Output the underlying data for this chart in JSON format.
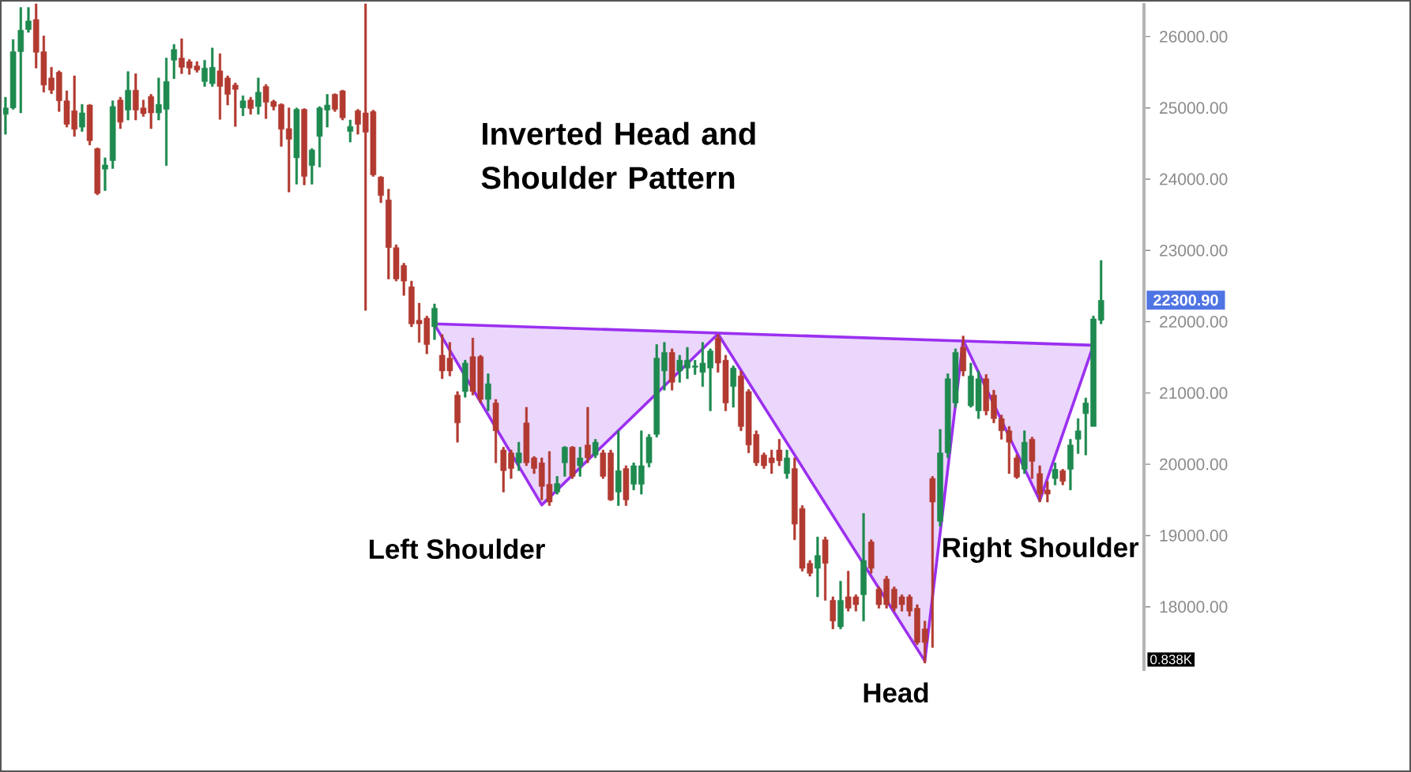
{
  "chart_data": {
    "type": "candlestick",
    "title": "Inverted Head and Shoulder Pattern",
    "categories": [
      null,
      null,
      null,
      null,
      null,
      null,
      null,
      null,
      null,
      null,
      null,
      null,
      null,
      null,
      null,
      null,
      null,
      null,
      null,
      null,
      null,
      null,
      null,
      null,
      null,
      null,
      null,
      null,
      null,
      null,
      null,
      null,
      null,
      null,
      null,
      null,
      null,
      null,
      null,
      null,
      null,
      null,
      null,
      null,
      null,
      null,
      null,
      null,
      null,
      null,
      null,
      null,
      null,
      null,
      null,
      null,
      null,
      null,
      null,
      null,
      null,
      null,
      null,
      null,
      null,
      null,
      null,
      null,
      null,
      null,
      null,
      null,
      null,
      null,
      null,
      null,
      null,
      null,
      null,
      null,
      null,
      null,
      null,
      null,
      null,
      null,
      null,
      null,
      null,
      null,
      null,
      null,
      null,
      null,
      null,
      null,
      null,
      null,
      null,
      null,
      null,
      null,
      null,
      null,
      null,
      null,
      null,
      null,
      null,
      null,
      null,
      null,
      null,
      null,
      null,
      null,
      null,
      null,
      null,
      null,
      null,
      null,
      null,
      null,
      null,
      null,
      null,
      null,
      null,
      null,
      null,
      null,
      null,
      null,
      null,
      null,
      null,
      null,
      null,
      null,
      null,
      null,
      null,
      null
    ],
    "ohlc": [
      [
        24910,
        25150,
        24630,
        25000
      ],
      [
        25000,
        25960,
        24980,
        25790
      ],
      [
        25790,
        26410,
        24930,
        26090
      ],
      [
        26100,
        26410,
        26060,
        26220
      ],
      [
        26240,
        26460,
        25560,
        25780
      ],
      [
        25790,
        26010,
        25220,
        25320
      ],
      [
        25420,
        25570,
        25200,
        25250
      ],
      [
        25500,
        25520,
        24950,
        25100
      ],
      [
        25100,
        25240,
        24730,
        24770
      ],
      [
        24960,
        25450,
        24600,
        24700
      ],
      [
        24730,
        25050,
        24670,
        24930
      ],
      [
        25040,
        25050,
        24480,
        24540
      ],
      [
        24430,
        24440,
        23780,
        23800
      ],
      [
        24140,
        24300,
        23840,
        24200
      ],
      [
        24260,
        25100,
        24150,
        25020
      ],
      [
        25110,
        25150,
        24710,
        24800
      ],
      [
        24970,
        25510,
        24830,
        25250
      ],
      [
        25250,
        25480,
        24830,
        24970
      ],
      [
        25000,
        25110,
        24880,
        24920
      ],
      [
        25160,
        25190,
        24710,
        24930
      ],
      [
        24930,
        25420,
        24830,
        25050
      ],
      [
        24980,
        25700,
        24190,
        25370
      ],
      [
        25670,
        25890,
        25410,
        25820
      ],
      [
        25700,
        25970,
        25480,
        25570
      ],
      [
        25650,
        25680,
        25470,
        25560
      ],
      [
        25590,
        25650,
        25500,
        25530
      ],
      [
        25370,
        25670,
        25300,
        25560
      ],
      [
        25340,
        25840,
        25300,
        25570
      ],
      [
        25520,
        25760,
        24840,
        25300
      ],
      [
        25420,
        25450,
        25040,
        25190
      ],
      [
        25320,
        25350,
        24740,
        25260
      ],
      [
        25000,
        25170,
        24890,
        25100
      ],
      [
        25110,
        25150,
        24910,
        24990
      ],
      [
        25020,
        25420,
        24910,
        25220
      ],
      [
        25300,
        25330,
        24850,
        25080
      ],
      [
        25090,
        25110,
        24970,
        25020
      ],
      [
        25050,
        25060,
        24460,
        24700
      ],
      [
        24710,
        25000,
        23820,
        24560
      ],
      [
        24300,
        25000,
        23930,
        24980
      ],
      [
        24980,
        24990,
        23920,
        24040
      ],
      [
        24190,
        24430,
        23930,
        24410
      ],
      [
        24600,
        25020,
        24170,
        25000
      ],
      [
        24970,
        25190,
        24730,
        25040
      ],
      [
        25190,
        25200,
        24950,
        24980
      ],
      [
        25240,
        25250,
        24830,
        24860
      ],
      [
        24670,
        24830,
        24520,
        24740
      ],
      [
        24960,
        24980,
        24630,
        24770
      ],
      [
        24930,
        26460,
        22160,
        24660
      ],
      [
        24950,
        24970,
        24040,
        24060
      ],
      [
        24030,
        24040,
        23670,
        23770
      ],
      [
        23710,
        23860,
        22600,
        23040
      ],
      [
        23040,
        23080,
        22570,
        22600
      ],
      [
        22790,
        22820,
        22370,
        22570
      ],
      [
        22490,
        22570,
        21930,
        21970
      ],
      [
        22020,
        22260,
        21710,
        21970
      ],
      [
        22050,
        22080,
        21550,
        21680
      ],
      [
        21930,
        22250,
        21750,
        22190
      ],
      [
        21530,
        21820,
        21200,
        21310
      ],
      [
        21490,
        21710,
        21240,
        21310
      ],
      [
        20970,
        21020,
        20310,
        20580
      ],
      [
        21020,
        21460,
        20940,
        21420
      ],
      [
        21510,
        21770,
        20970,
        21020
      ],
      [
        21510,
        21530,
        20860,
        20910
      ],
      [
        20910,
        21270,
        20750,
        21130
      ],
      [
        20860,
        20910,
        20020,
        20470
      ],
      [
        20200,
        20240,
        19610,
        19910
      ],
      [
        20160,
        20200,
        19800,
        19940
      ],
      [
        20020,
        20310,
        19910,
        20160
      ],
      [
        20580,
        20800,
        19980,
        20020
      ],
      [
        20090,
        20110,
        19870,
        19940
      ],
      [
        20020,
        20090,
        19500,
        19690
      ],
      [
        19720,
        20180,
        19420,
        19470
      ],
      [
        19610,
        19830,
        19580,
        19730
      ],
      [
        20020,
        20250,
        19830,
        20240
      ],
      [
        20240,
        20250,
        19800,
        19830
      ],
      [
        19980,
        20240,
        19830,
        20090
      ],
      [
        20270,
        20800,
        20020,
        20090
      ],
      [
        20130,
        20350,
        20090,
        20310
      ],
      [
        20160,
        20200,
        19800,
        19830
      ],
      [
        20160,
        20200,
        19490,
        19500
      ],
      [
        19610,
        20470,
        19420,
        19910
      ],
      [
        19940,
        19980,
        19420,
        19500
      ],
      [
        19720,
        20020,
        19640,
        19980
      ],
      [
        19720,
        20470,
        19580,
        19980
      ],
      [
        20020,
        20420,
        19960,
        20380
      ],
      [
        20420,
        21680,
        20380,
        21490
      ],
      [
        21310,
        21710,
        21040,
        21570
      ],
      [
        21570,
        21620,
        21040,
        21150
      ],
      [
        21310,
        21530,
        21150,
        21460
      ],
      [
        21350,
        21640,
        21200,
        21460
      ],
      [
        21360,
        21460,
        21260,
        21380
      ],
      [
        21290,
        21710,
        21090,
        21420
      ],
      [
        21350,
        21620,
        20750,
        21590
      ],
      [
        21770,
        21820,
        21290,
        21420
      ],
      [
        21460,
        21530,
        20750,
        20860
      ],
      [
        21090,
        21380,
        20800,
        21350
      ],
      [
        21240,
        21310,
        20470,
        20530
      ],
      [
        21020,
        21050,
        20160,
        20270
      ],
      [
        20420,
        20470,
        19980,
        20020
      ],
      [
        20130,
        20160,
        19940,
        19980
      ],
      [
        20090,
        20200,
        19870,
        20020
      ],
      [
        20200,
        20350,
        19980,
        20050
      ],
      [
        19870,
        20200,
        19800,
        20090
      ],
      [
        19940,
        20090,
        18940,
        19160
      ],
      [
        19380,
        19420,
        18500,
        18540
      ],
      [
        18610,
        18650,
        18430,
        18470
      ],
      [
        18540,
        18980,
        18140,
        18720
      ],
      [
        18940,
        18980,
        18090,
        18610
      ],
      [
        18090,
        18140,
        17690,
        17800
      ],
      [
        17720,
        18360,
        17690,
        18090
      ],
      [
        18140,
        18500,
        17940,
        17980
      ],
      [
        18140,
        18170,
        17940,
        18030
      ],
      [
        18170,
        19310,
        17800,
        18650
      ],
      [
        18910,
        18940,
        18470,
        18540
      ],
      [
        18250,
        18280,
        17980,
        18030
      ],
      [
        18390,
        18430,
        17980,
        18030
      ],
      [
        18250,
        18280,
        17940,
        17980
      ],
      [
        18140,
        18170,
        17940,
        18030
      ],
      [
        18140,
        18170,
        17870,
        17940
      ],
      [
        17980,
        18030,
        17470,
        17500
      ],
      [
        17690,
        17800,
        17210,
        17500
      ],
      [
        19800,
        19830,
        17430,
        19470
      ],
      [
        19200,
        20490,
        19130,
        20160
      ],
      [
        20160,
        21270,
        20090,
        21200
      ],
      [
        20860,
        21620,
        20800,
        21570
      ],
      [
        21640,
        21800,
        21240,
        21310
      ],
      [
        20820,
        21420,
        20800,
        21240
      ],
      [
        20750,
        21310,
        20640,
        21200
      ],
      [
        21200,
        21260,
        20690,
        20750
      ],
      [
        20970,
        21040,
        20580,
        20640
      ],
      [
        20640,
        20690,
        20350,
        20470
      ],
      [
        20470,
        20530,
        19870,
        20310
      ],
      [
        20090,
        20130,
        19800,
        19820
      ],
      [
        19930,
        20470,
        19870,
        20310
      ],
      [
        20350,
        20380,
        19800,
        20040
      ],
      [
        19870,
        19980,
        19470,
        19580
      ],
      [
        19640,
        19760,
        19470,
        19580
      ],
      [
        19800,
        20020,
        19710,
        19930
      ],
      [
        19910,
        19930,
        19710,
        19760
      ],
      [
        19930,
        20350,
        19640,
        20270
      ],
      [
        20350,
        20640,
        20150,
        20470
      ],
      [
        20710,
        20930,
        20130,
        20860
      ],
      [
        20530,
        22080,
        20530,
        22040
      ],
      [
        22020,
        22860,
        21970,
        22300.9
      ]
    ],
    "colors": [
      "#1e8a4f",
      "#1e8a4f",
      "#1e8a4f",
      "#1e8a4f",
      "#b23a30",
      "#b23a30",
      "#b23a30",
      "#b23a30",
      "#b23a30",
      "#b23a30",
      "#1e8a4f",
      "#b23a30",
      "#b23a30",
      "#1e8a4f",
      "#1e8a4f",
      "#b23a30",
      "#1e8a4f",
      "#b23a30",
      "#b23a30",
      "#b23a30",
      "#1e8a4f",
      "#1e8a4f",
      "#1e8a4f",
      "#b23a30",
      "#b23a30",
      "#b23a30",
      "#1e8a4f",
      "#1e8a4f",
      "#b23a30",
      "#b23a30",
      "#b23a30",
      "#1e8a4f",
      "#b23a30",
      "#1e8a4f",
      "#b23a30",
      "#b23a30",
      "#b23a30",
      "#b23a30",
      "#1e8a4f",
      "#b23a30",
      "#1e8a4f",
      "#1e8a4f",
      "#1e8a4f",
      "#b23a30",
      "#b23a30",
      "#1e8a4f",
      "#b23a30",
      "#b23a30",
      "#b23a30",
      "#b23a30",
      "#b23a30",
      "#b23a30",
      "#b23a30",
      "#b23a30",
      "#b23a30",
      "#b23a30",
      "#1e8a4f",
      "#b23a30",
      "#b23a30",
      "#b23a30",
      "#1e8a4f",
      "#b23a30",
      "#b23a30",
      "#1e8a4f",
      "#b23a30",
      "#b23a30",
      "#b23a30",
      "#1e8a4f",
      "#b23a30",
      "#b23a30",
      "#b23a30",
      "#b23a30",
      "#1e8a4f",
      "#1e8a4f",
      "#b23a30",
      "#1e8a4f",
      "#b23a30",
      "#1e8a4f",
      "#b23a30",
      "#b23a30",
      "#1e8a4f",
      "#b23a30",
      "#1e8a4f",
      "#1e8a4f",
      "#1e8a4f",
      "#1e8a4f",
      "#1e8a4f",
      "#b23a30",
      "#1e8a4f",
      "#1e8a4f",
      "#1e8a4f",
      "#1e8a4f",
      "#1e8a4f",
      "#b23a30",
      "#b23a30",
      "#1e8a4f",
      "#b23a30",
      "#b23a30",
      "#b23a30",
      "#b23a30",
      "#b23a30",
      "#b23a30",
      "#1e8a4f",
      "#b23a30",
      "#b23a30",
      "#b23a30",
      "#1e8a4f",
      "#b23a30",
      "#b23a30",
      "#1e8a4f",
      "#b23a30",
      "#b23a30",
      "#1e8a4f",
      "#b23a30",
      "#b23a30",
      "#b23a30",
      "#b23a30",
      "#b23a30",
      "#b23a30",
      "#b23a30",
      "#b23a30",
      "#b23a30",
      "#1e8a4f",
      "#1e8a4f",
      "#1e8a4f",
      "#b23a30",
      "#1e8a4f",
      "#1e8a4f",
      "#b23a30",
      "#b23a30",
      "#b23a30",
      "#b23a30",
      "#b23a30",
      "#1e8a4f",
      "#b23a30",
      "#b23a30",
      "#b23a30",
      "#1e8a4f",
      "#b23a30",
      "#1e8a4f",
      "#1e8a4f",
      "#1e8a4f",
      "#1e8a4f",
      "#1e8a4f"
    ],
    "series": [
      {
        "type": "line",
        "color": "#9b30f0",
        "values": [
          null,
          null,
          null,
          null,
          null,
          null,
          null,
          null,
          null,
          null,
          null,
          null,
          null,
          null,
          null,
          null,
          null,
          null,
          null,
          null,
          null,
          null,
          null,
          null,
          null,
          null,
          null,
          null,
          null,
          null,
          null,
          null,
          null,
          null,
          null,
          null,
          null,
          null,
          null,
          null,
          null,
          null,
          null,
          null,
          null,
          null,
          null,
          null,
          null,
          null,
          null,
          null,
          null,
          null,
          null,
          null,
          21970,
          null,
          null,
          null,
          null,
          null,
          null,
          null,
          null,
          null,
          null,
          null,
          null,
          null,
          null,
          null,
          null,
          null,
          null,
          null,
          null,
          null,
          null,
          null,
          null,
          null,
          null,
          null,
          null,
          null,
          null,
          null,
          null,
          null,
          null,
          null,
          null,
          null,
          null,
          null,
          null,
          null,
          null,
          null,
          null,
          null,
          null,
          null,
          null,
          null,
          null,
          null,
          null,
          null,
          null,
          null,
          null,
          null,
          null,
          null,
          null,
          null,
          null,
          null,
          null,
          null,
          null,
          null,
          null,
          null,
          null,
          null,
          null,
          null,
          null,
          null,
          null,
          null,
          null,
          null,
          null,
          null,
          null,
          null,
          null,
          null,
          21670,
          null
        ]
      },
      {
        "type": "line",
        "color": "#9b30f0",
        "values": [
          null,
          null,
          null,
          null,
          null,
          null,
          null,
          null,
          null,
          null,
          null,
          null,
          null,
          null,
          null,
          null,
          null,
          null,
          null,
          null,
          null,
          null,
          null,
          null,
          null,
          null,
          null,
          null,
          null,
          null,
          null,
          null,
          null,
          null,
          null,
          null,
          null,
          null,
          null,
          null,
          null,
          null,
          null,
          null,
          null,
          null,
          null,
          null,
          null,
          null,
          null,
          null,
          null,
          null,
          null,
          null,
          21960,
          null,
          null,
          null,
          null,
          null,
          null,
          null,
          null,
          null,
          null,
          null,
          null,
          null,
          19430,
          null,
          null,
          null,
          null,
          null,
          null,
          null,
          null,
          null,
          null,
          null,
          null,
          null,
          null,
          null,
          null,
          null,
          null,
          null,
          null,
          null,
          null,
          21830,
          null,
          null,
          null,
          null,
          null,
          null,
          null,
          null,
          null,
          null,
          null,
          null,
          null,
          null,
          null,
          null,
          null,
          null,
          null,
          null,
          null,
          null,
          null,
          null,
          null,
          null,
          17240,
          null,
          null,
          null,
          null,
          21740,
          null,
          null,
          null,
          null,
          null,
          null,
          null,
          null,
          null,
          19490,
          null,
          null,
          null,
          null,
          null,
          null,
          21670,
          null
        ],
        "lower": [
          null,
          null,
          null,
          null,
          null,
          null,
          null,
          null,
          null,
          null,
          null,
          null,
          null,
          null,
          null,
          null,
          null,
          null,
          null,
          null,
          null,
          null,
          null,
          null,
          null,
          null,
          null,
          null,
          null,
          null,
          null,
          null,
          null,
          null,
          null,
          null,
          null,
          null,
          null,
          null,
          null,
          null,
          null,
          null,
          null,
          null,
          null,
          null,
          null,
          null,
          null,
          null,
          null,
          null,
          null,
          null,
          21960,
          null,
          null,
          null,
          null,
          null,
          null,
          null,
          null,
          null,
          null,
          null,
          null,
          null,
          19430,
          null,
          null,
          null,
          null,
          null,
          null,
          null,
          null,
          null,
          null,
          null,
          null,
          null,
          null,
          null,
          null,
          null,
          null,
          null,
          null,
          null,
          null,
          21830,
          null,
          null,
          null,
          null,
          null,
          null,
          null,
          null,
          null,
          null,
          null,
          null,
          null,
          null,
          null,
          null,
          null,
          null,
          null,
          null,
          null,
          null,
          null,
          null,
          null,
          null,
          17240,
          null,
          null,
          null,
          null,
          21740,
          null,
          null,
          null,
          null,
          null,
          null,
          null,
          null,
          null,
          19490,
          null,
          null,
          null,
          null,
          null,
          null,
          21670,
          null
        ],
        "upper": [
          null,
          null,
          null,
          null,
          null,
          null,
          null,
          null,
          null,
          null,
          null,
          null,
          null,
          null,
          null,
          null,
          null,
          null,
          null,
          null,
          null,
          null,
          null,
          null,
          null,
          null,
          null,
          null,
          null,
          null,
          null,
          null,
          null,
          null,
          null,
          null,
          null,
          null,
          null,
          null,
          null,
          null,
          null,
          null,
          null,
          null,
          null,
          null,
          null,
          null,
          null,
          null,
          null,
          null,
          null,
          null,
          21970,
          null,
          null,
          null,
          null,
          null,
          null,
          null,
          null,
          null,
          null,
          null,
          null,
          null,
          21920,
          null,
          null,
          null,
          null,
          null,
          null,
          null,
          null,
          null,
          null,
          null,
          null,
          null,
          null,
          null,
          null,
          null,
          null,
          null,
          null,
          null,
          null,
          21840,
          null,
          null,
          null,
          null,
          null,
          null,
          null,
          null,
          null,
          null,
          null,
          null,
          null,
          null,
          null,
          null,
          null,
          null,
          null,
          null,
          null,
          null,
          null,
          null,
          null,
          null,
          21750,
          null,
          null,
          null,
          null,
          21740,
          null,
          null,
          null,
          null,
          null,
          null,
          null,
          null,
          null,
          21690,
          null,
          null,
          null,
          null,
          null,
          null,
          21670,
          null
        ]
      }
    ],
    "ylim": [
      17100,
      26470
    ],
    "yticks": [
      {
        "value": 18000,
        "label": "18000.00"
      },
      {
        "value": 19000,
        "label": "19000.00"
      },
      {
        "value": 20000,
        "label": "20000.00"
      },
      {
        "value": 21000,
        "label": "21000.00"
      },
      {
        "value": 22000,
        "label": "22000.00"
      },
      {
        "value": 23000,
        "label": "23000.00"
      },
      {
        "value": 24000,
        "label": "24000.00"
      },
      {
        "value": 25000,
        "label": "25000.00"
      },
      {
        "value": 26000,
        "label": "26000.00"
      }
    ],
    "tick_labels": "y",
    "annotations": [
      "Left Shoulder",
      "Head",
      "Right Shoulder",
      "22300.90",
      "0.838K"
    ]
  }
}
